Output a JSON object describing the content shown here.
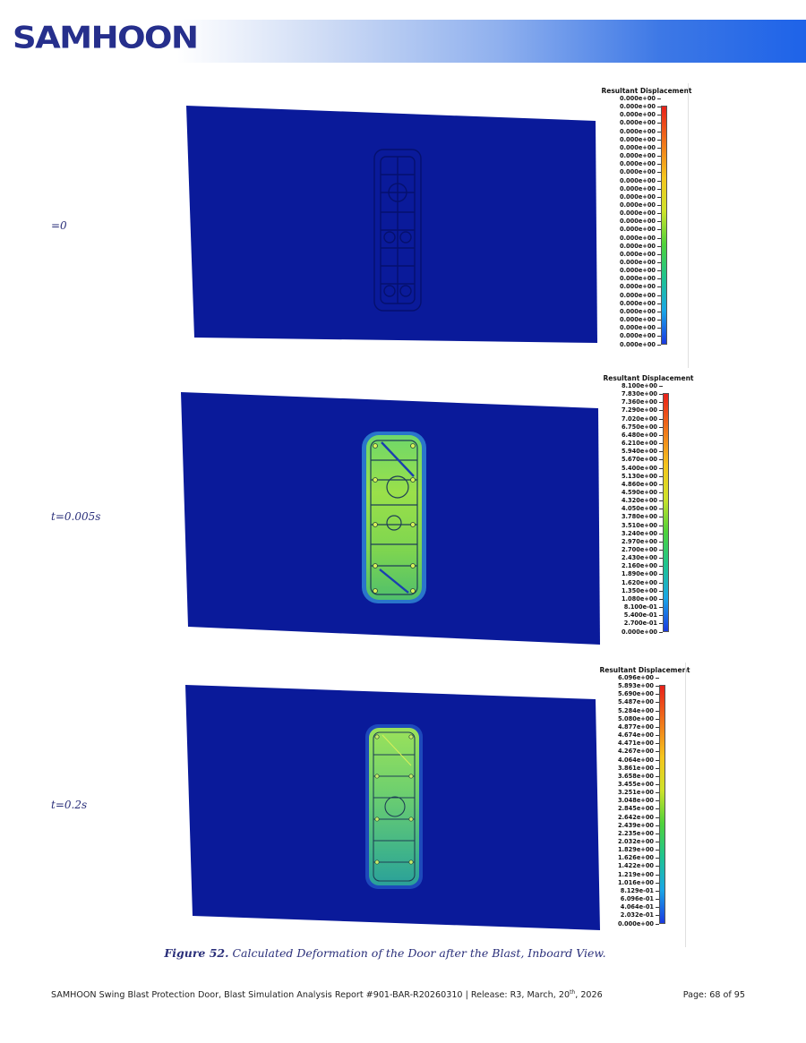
{
  "header": {
    "logo_text": "SAMHOON"
  },
  "panels": [
    {
      "time_label": "=0",
      "legend": {
        "title": "Resultant Displacement",
        "values": [
          "0.000e+00",
          "0.000e+00",
          "0.000e+00",
          "0.000e+00",
          "0.000e+00",
          "0.000e+00",
          "0.000e+00",
          "0.000e+00",
          "0.000e+00",
          "0.000e+00",
          "0.000e+00",
          "0.000e+00",
          "0.000e+00",
          "0.000e+00",
          "0.000e+00",
          "0.000e+00",
          "0.000e+00",
          "0.000e+00",
          "0.000e+00",
          "0.000e+00",
          "0.000e+00",
          "0.000e+00",
          "0.000e+00",
          "0.000e+00",
          "0.000e+00",
          "0.000e+00",
          "0.000e+00",
          "0.000e+00",
          "0.000e+00",
          "0.000e+00",
          "0.000e+00"
        ]
      },
      "door_fill_level": 0.0
    },
    {
      "time_label": "t=0.005s",
      "legend": {
        "title": "Resultant Displacement",
        "values": [
          "8.100e+00",
          "7.830e+00",
          "7.360e+00",
          "7.290e+00",
          "7.020e+00",
          "6.750e+00",
          "6.480e+00",
          "6.210e+00",
          "5.940e+00",
          "5.670e+00",
          "5.400e+00",
          "5.130e+00",
          "4.860e+00",
          "4.590e+00",
          "4.320e+00",
          "4.050e+00",
          "3.780e+00",
          "3.510e+00",
          "3.240e+00",
          "2.970e+00",
          "2.700e+00",
          "2.430e+00",
          "2.160e+00",
          "1.890e+00",
          "1.620e+00",
          "1.350e+00",
          "1.080e+00",
          "8.100e-01",
          "5.400e-01",
          "2.700e-01",
          "0.000e+00"
        ]
      },
      "door_fill_level": 0.55
    },
    {
      "time_label": "t=0.2s",
      "legend": {
        "title": "Resultant Displacement",
        "values": [
          "6.096e+00",
          "5.893e+00",
          "5.690e+00",
          "5.487e+00",
          "5.284e+00",
          "5.080e+00",
          "4.877e+00",
          "4.674e+00",
          "4.471e+00",
          "4.267e+00",
          "4.064e+00",
          "3.861e+00",
          "3.658e+00",
          "3.455e+00",
          "3.251e+00",
          "3.048e+00",
          "2.845e+00",
          "2.642e+00",
          "2.439e+00",
          "2.235e+00",
          "2.032e+00",
          "1.829e+00",
          "1.626e+00",
          "1.422e+00",
          "1.219e+00",
          "1.016e+00",
          "8.129e-01",
          "6.096e-01",
          "4.064e-01",
          "2.032e-01",
          "0.000e+00"
        ]
      },
      "door_fill_level": 0.45
    }
  ],
  "caption": {
    "figure_label": "Figure 52.",
    "text": " Calculated Deformation of the Door after the Blast, Inboard View."
  },
  "footer": {
    "report_text_before": "SAMHOON Swing Blast Protection Door, Blast Simulation Analysis Report #901-BAR-R20260310 | Release: R3, March, 20",
    "report_text_sup": "th",
    "report_text_after": ", 2026",
    "page": "Page:  68 of 95"
  },
  "colors": {
    "brand_navy": "#262f8c",
    "plate_blue": "#0a1a9a",
    "caption_navy": "#2a2f7a"
  }
}
